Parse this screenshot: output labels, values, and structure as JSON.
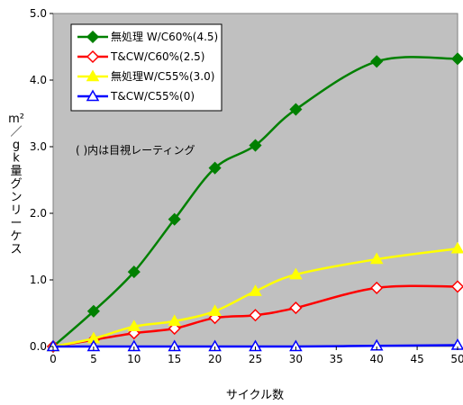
{
  "chart_data": {
    "type": "line",
    "title": "",
    "xlabel": "サイクル数",
    "ylabel": "スケーリング量 kg/m²",
    "ylabel_chars": [
      "ス",
      "ケ",
      "ー",
      "リ",
      "ン",
      "グ",
      "量",
      "k",
      "g",
      "／",
      "m²"
    ],
    "xlim": [
      0,
      50
    ],
    "ylim": [
      0,
      5
    ],
    "x_ticks": [
      "0",
      "5",
      "10",
      "15",
      "20",
      "25",
      "30",
      "35",
      "40",
      "45",
      "50"
    ],
    "y_ticks": [
      "0.0",
      "1.0",
      "2.0",
      "3.0",
      "4.0",
      "5.0"
    ],
    "grid": false,
    "legend_position": "top-left",
    "annotation": "( )内は目視レーティング",
    "series": [
      {
        "name": "無処理 W/C60%(4.5)",
        "color": "#008000",
        "marker": "diamond-filled",
        "x": [
          0,
          5,
          10,
          15,
          20,
          25,
          30,
          40,
          50
        ],
        "values": [
          0.0,
          0.53,
          1.12,
          1.91,
          2.68,
          3.02,
          3.56,
          4.28,
          4.32
        ]
      },
      {
        "name": "T&CW/C60%(2.5)",
        "color": "#ff0000",
        "marker": "diamond-open",
        "x": [
          0,
          5,
          10,
          15,
          20,
          25,
          30,
          40,
          50
        ],
        "values": [
          0.0,
          0.1,
          0.2,
          0.27,
          0.43,
          0.47,
          0.58,
          0.88,
          0.9
        ]
      },
      {
        "name": "無処理W/C55%(3.0)",
        "color": "#ffff00",
        "marker": "triangle-filled",
        "x": [
          0,
          5,
          10,
          15,
          20,
          25,
          30,
          40,
          50
        ],
        "values": [
          0.0,
          0.12,
          0.3,
          0.38,
          0.53,
          0.83,
          1.08,
          1.31,
          1.47
        ]
      },
      {
        "name": "T&CW/C55%(0)",
        "color": "#0000ff",
        "marker": "triangle-open",
        "x": [
          0,
          5,
          10,
          15,
          20,
          25,
          30,
          40,
          50
        ],
        "values": [
          0.0,
          0.0,
          0.0,
          0.0,
          0.0,
          0.0,
          0.0,
          0.01,
          0.02
        ]
      }
    ]
  }
}
